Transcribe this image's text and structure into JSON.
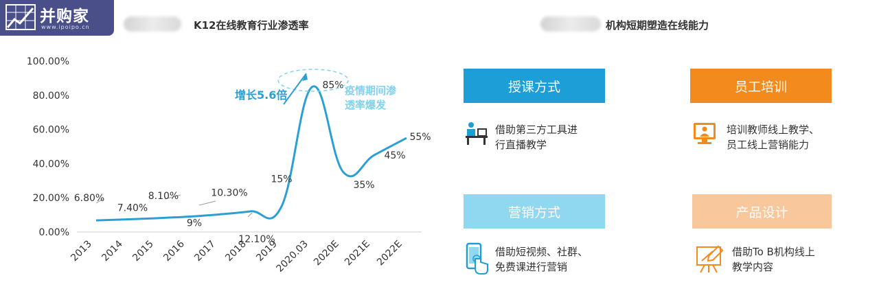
{
  "logo": {
    "title": "并购家",
    "subtitle": "www.ipoipo.cn"
  },
  "left_heading": "K12在线教育行业渗透率",
  "right_heading": "机构短期塑造在线能力",
  "chart_data": {
    "type": "line",
    "title": "K12在线教育行业渗透率",
    "categories": [
      "2013",
      "2014",
      "2015",
      "2016",
      "2017",
      "2018",
      "2019",
      "2020.03",
      "2020E",
      "2021E",
      "2022E"
    ],
    "series": [
      {
        "values": [
          6.8,
          7.4,
          8.1,
          9,
          10.3,
          12.1,
          15,
          85,
          35,
          45,
          55
        ]
      }
    ],
    "data_labels": [
      "6.80%",
      "7.40%",
      "8.10%",
      "9%",
      "10.30%",
      "12.10%",
      "15%",
      "85%",
      "35%",
      "45%",
      "55%"
    ],
    "yticks": [
      "0.00%",
      "20.00%",
      "40.00%",
      "60.00%",
      "80.00%",
      "100.00%"
    ],
    "ylim": [
      0,
      100
    ],
    "line_color": "#2b9fd4",
    "annotations": {
      "growth": "增长5.6倍",
      "burst_line1": "疫情期间渗",
      "burst_line2": "透率爆发"
    }
  },
  "cards": [
    {
      "title": "授课方式",
      "desc1": "借助第三方工具进",
      "desc2": "行直播教学",
      "color": "#1e9ed6",
      "icon": "teacher-desk-icon"
    },
    {
      "title": "员工培训",
      "desc1": "培训教师线上教学、",
      "desc2": "员工线上营销能力",
      "color": "#f28a1e",
      "icon": "monitor-person-icon"
    },
    {
      "title": "营销方式",
      "desc1": "借助短视频、社群、",
      "desc2": "免费课进行营销",
      "color": "#8fd8f0",
      "icon": "phone-touch-icon"
    },
    {
      "title": "产品设计",
      "desc1": "借助To B机构线上",
      "desc2": "教学内容",
      "color": "#f9c79c",
      "icon": "design-board-icon"
    }
  ]
}
